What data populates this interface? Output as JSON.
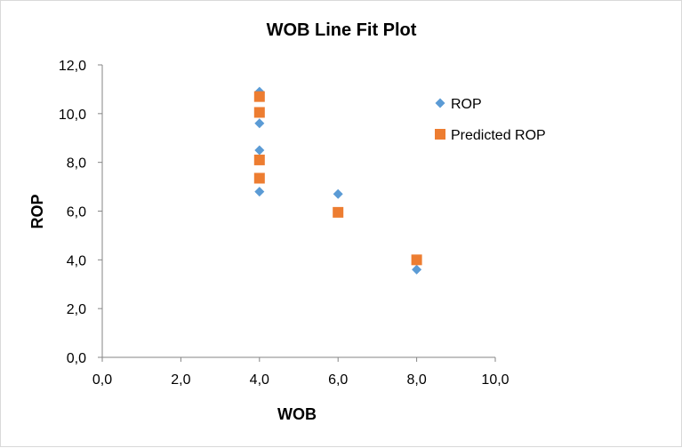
{
  "chart_data": {
    "type": "scatter",
    "title": "WOB Line Fit  Plot",
    "xlabel": "WOB",
    "ylabel": "ROP",
    "xlim": [
      0,
      10
    ],
    "ylim": [
      0,
      12
    ],
    "x_ticks": [
      "0,0",
      "2,0",
      "4,0",
      "6,0",
      "8,0",
      "10,0"
    ],
    "y_ticks": [
      "0,0",
      "2,0",
      "4,0",
      "6,0",
      "8,0",
      "10,0",
      "12,0"
    ],
    "grid": false,
    "legend_position": "right",
    "series": [
      {
        "name": "ROP",
        "marker": "diamond",
        "color": "#5B9BD5",
        "points": [
          [
            4,
            10.9
          ],
          [
            4,
            9.6
          ],
          [
            4,
            8.5
          ],
          [
            4,
            6.8
          ],
          [
            6,
            6.7
          ],
          [
            8,
            3.6
          ]
        ]
      },
      {
        "name": "Predicted ROP",
        "marker": "square",
        "color": "#ED7D31",
        "points": [
          [
            4,
            10.7
          ],
          [
            4,
            10.05
          ],
          [
            4,
            8.1
          ],
          [
            4,
            7.35
          ],
          [
            6,
            5.95
          ],
          [
            8,
            4.0
          ]
        ]
      }
    ]
  }
}
